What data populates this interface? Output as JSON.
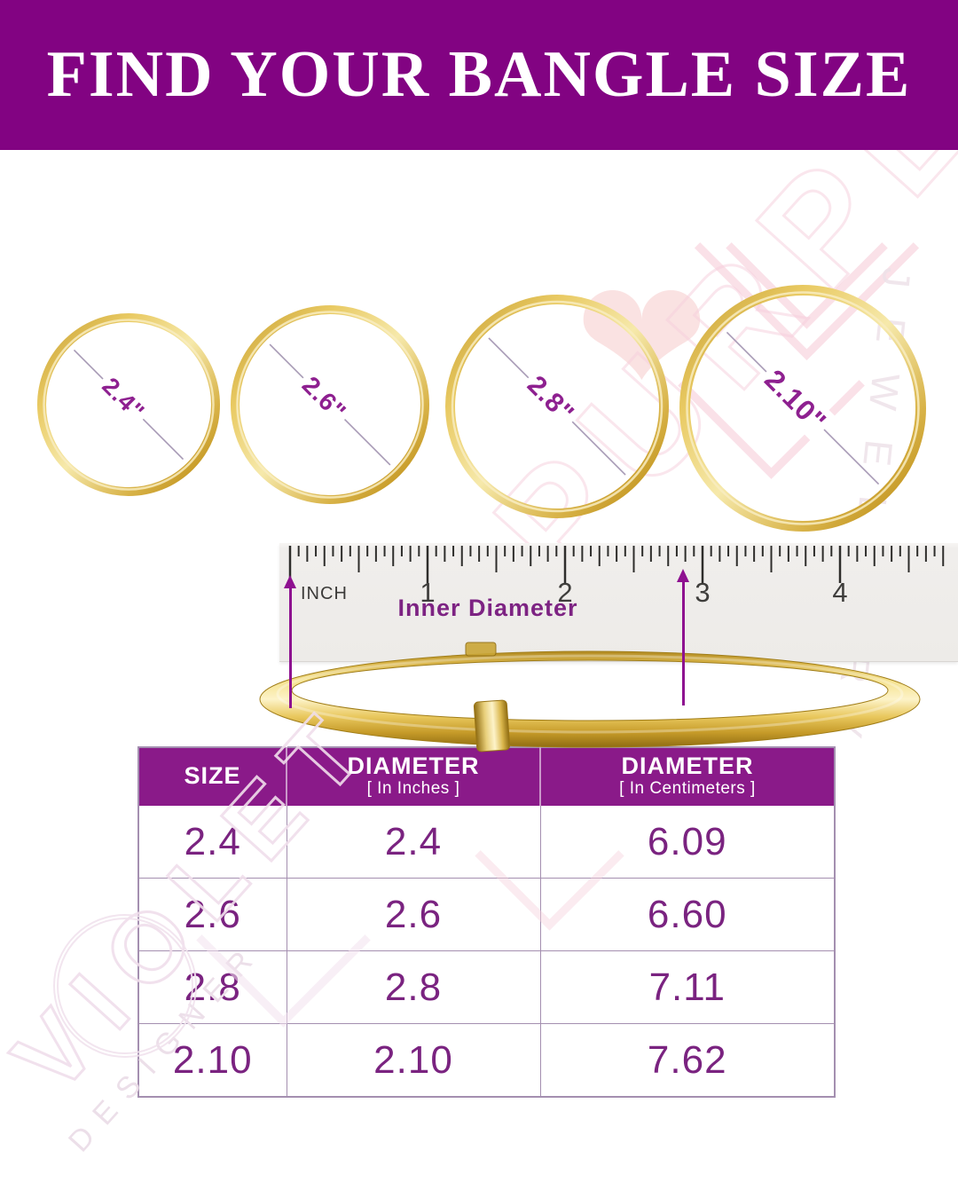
{
  "header": {
    "title": "FIND YOUR BANGLE SIZE"
  },
  "circles": {
    "labels": [
      "2.4\"",
      "2.6\"",
      "2.8\"",
      "2.10\""
    ]
  },
  "ruler": {
    "unit_label": "INCH",
    "inch_numbers": [
      "1",
      "2",
      "3",
      "4"
    ],
    "annotation": "Inner Diameter"
  },
  "table": {
    "columns": [
      {
        "title": "SIZE",
        "subtitle": ""
      },
      {
        "title": "DIAMETER",
        "subtitle": "[ In Inches ]"
      },
      {
        "title": "DIAMETER",
        "subtitle": "[ In Centimeters ]"
      }
    ],
    "rows": [
      {
        "size": "2.4",
        "inches": "2.4",
        "centimeters": "6.09"
      },
      {
        "size": "2.6",
        "inches": "2.6",
        "centimeters": "6.60"
      },
      {
        "size": "2.8",
        "inches": "2.8",
        "centimeters": "7.11"
      },
      {
        "size": "2.10",
        "inches": "2.10",
        "centimeters": "7.62"
      }
    ]
  },
  "watermark": {
    "brand_word_1": "VIOLET",
    "brand_word_2": "PURPLE",
    "side_word": "JEWELLERY",
    "bottom_word": "DESIGNER"
  },
  "colors": {
    "banner_purple": "#820382",
    "table_header_purple": "#8a1a89",
    "value_purple": "#7a2380",
    "annotation_purple": "#7d2383",
    "arrow_purple": "#8e1190",
    "gold": "#d9b44a",
    "ruler_bg": "#f0eeec"
  }
}
